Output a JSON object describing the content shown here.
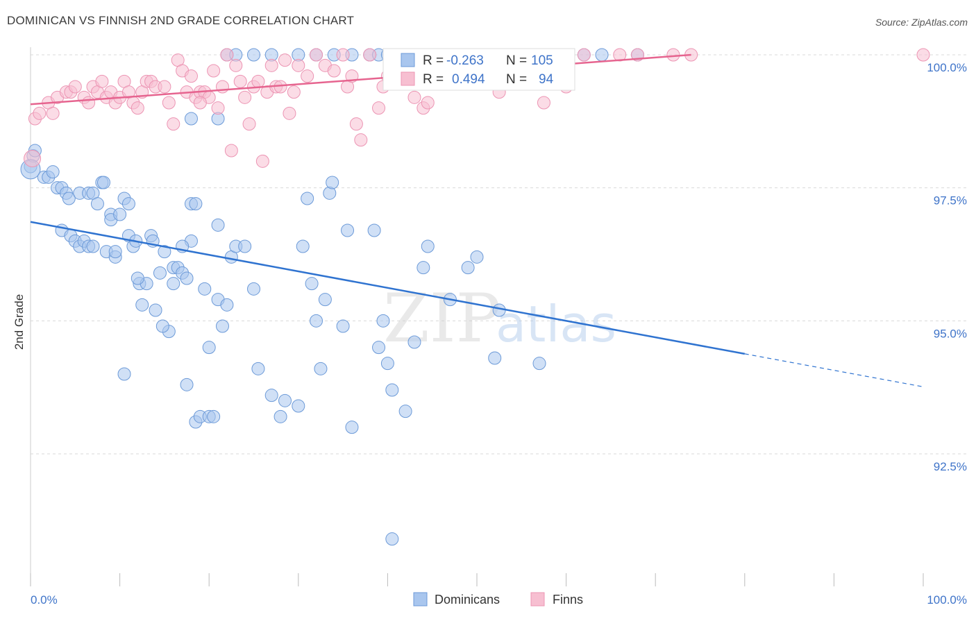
{
  "title": "DOMINICAN VS FINNISH 2ND GRADE CORRELATION CHART",
  "source": "Source: ZipAtlas.com",
  "watermark": {
    "part1": "ZIP",
    "part2": "atlas"
  },
  "chart_data": {
    "type": "scatter",
    "xlabel": "",
    "ylabel": "2nd Grade",
    "xlim": [
      0,
      100
    ],
    "ylim": [
      90.8,
      100.4
    ],
    "x_tick_labels": [
      "0.0%",
      "100.0%"
    ],
    "y_ticks": [
      {
        "value": 100.0,
        "label": "100.0%"
      },
      {
        "value": 97.5,
        "label": "97.5%"
      },
      {
        "value": 95.0,
        "label": "95.0%"
      },
      {
        "value": 92.5,
        "label": "92.5%"
      }
    ],
    "grid": true,
    "legend_position": "bottom",
    "stats_box": [
      {
        "series": "Dominicans",
        "r_label": "R =",
        "r": "-0.263",
        "n_label": "N =",
        "n": "105"
      },
      {
        "series": "Finns",
        "r_label": "R =",
        "r": "0.494",
        "n_label": "N =",
        "n": "94"
      }
    ],
    "colors": {
      "Dominicans": {
        "fill": "#a9c6ee",
        "stroke": "#6c9ad8",
        "line": "#2f73d0"
      },
      "Finns": {
        "fill": "#f7bfd1",
        "stroke": "#ec94b3",
        "line": "#e6648f"
      }
    },
    "series": [
      {
        "name": "Dominicans",
        "trendline": {
          "x": [
            0,
            80
          ],
          "y": [
            96.86,
            94.38
          ],
          "dashed_to": [
            100,
            93.76
          ]
        },
        "points": [
          [
            0,
            97.9
          ],
          [
            0.3,
            98.1
          ],
          [
            0.5,
            98.2
          ],
          [
            1.5,
            97.7
          ],
          [
            2,
            97.7
          ],
          [
            2.5,
            97.8
          ],
          [
            3,
            97.5
          ],
          [
            3.5,
            97.5
          ],
          [
            4,
            97.4
          ],
          [
            4.3,
            97.3
          ],
          [
            5.5,
            97.4
          ],
          [
            6.5,
            97.4
          ],
          [
            7,
            97.4
          ],
          [
            8,
            97.6
          ],
          [
            8.2,
            97.6
          ],
          [
            7.5,
            97.2
          ],
          [
            9,
            97.0
          ],
          [
            9,
            96.9
          ],
          [
            10,
            97.0
          ],
          [
            10.5,
            97.3
          ],
          [
            3.5,
            96.7
          ],
          [
            4.5,
            96.6
          ],
          [
            5,
            96.5
          ],
          [
            5.5,
            96.4
          ],
          [
            6,
            96.5
          ],
          [
            6.5,
            96.4
          ],
          [
            7,
            96.4
          ],
          [
            8.5,
            96.3
          ],
          [
            9.5,
            96.2
          ],
          [
            11,
            96.6
          ],
          [
            11.5,
            96.4
          ],
          [
            11.8,
            96.5
          ],
          [
            13.5,
            96.6
          ],
          [
            13.7,
            96.5
          ],
          [
            15,
            96.3
          ],
          [
            16,
            96.0
          ],
          [
            16.5,
            96.0
          ],
          [
            17,
            95.9
          ],
          [
            17.5,
            95.8
          ],
          [
            18,
            97.2
          ],
          [
            18.5,
            97.2
          ],
          [
            18,
            96.5
          ],
          [
            19.5,
            95.6
          ],
          [
            20,
            94.5
          ],
          [
            21,
            96.8
          ],
          [
            21,
            95.4
          ],
          [
            21.5,
            94.9
          ],
          [
            22,
            95.3
          ],
          [
            22.5,
            96.2
          ],
          [
            23,
            96.4
          ],
          [
            24,
            96.4
          ],
          [
            25,
            95.6
          ],
          [
            25.5,
            94.1
          ],
          [
            27,
            93.6
          ],
          [
            28,
            93.2
          ],
          [
            28.5,
            93.5
          ],
          [
            30,
            93.4
          ],
          [
            30.5,
            96.4
          ],
          [
            31,
            97.3
          ],
          [
            31.5,
            95.7
          ],
          [
            32,
            95.0
          ],
          [
            32.5,
            94.1
          ],
          [
            33,
            95.4
          ],
          [
            33.5,
            97.4
          ],
          [
            33.8,
            97.6
          ],
          [
            35,
            94.9
          ],
          [
            35.5,
            96.7
          ],
          [
            36,
            93.0
          ],
          [
            38.5,
            96.7
          ],
          [
            39,
            94.5
          ],
          [
            39.5,
            95.0
          ],
          [
            40,
            94.2
          ],
          [
            40.5,
            93.7
          ],
          [
            40.5,
            90.9
          ],
          [
            42,
            93.3
          ],
          [
            43,
            94.6
          ],
          [
            44,
            96.0
          ],
          [
            44.5,
            96.4
          ],
          [
            47,
            95.4
          ],
          [
            49,
            96.0
          ],
          [
            50,
            96.2
          ],
          [
            52,
            94.3
          ],
          [
            52.5,
            95.2
          ],
          [
            57,
            94.2
          ],
          [
            10.5,
            94.0
          ],
          [
            15.5,
            94.8
          ],
          [
            14.8,
            94.9
          ],
          [
            14,
            95.2
          ],
          [
            12.5,
            95.3
          ],
          [
            12.2,
            95.7
          ],
          [
            13,
            95.7
          ],
          [
            14.5,
            95.9
          ],
          [
            9.5,
            96.3
          ],
          [
            11,
            97.2
          ],
          [
            12,
            95.8
          ],
          [
            17,
            96.4
          ],
          [
            16,
            95.7
          ],
          [
            17.5,
            93.8
          ],
          [
            18.5,
            93.1
          ],
          [
            19,
            93.2
          ],
          [
            20,
            93.2
          ],
          [
            20.5,
            93.2
          ],
          [
            22,
            100.0
          ],
          [
            23,
            100.0
          ],
          [
            25,
            100.0
          ],
          [
            27,
            100.0
          ],
          [
            30,
            100.0
          ],
          [
            32,
            100.0
          ],
          [
            34,
            100.0
          ],
          [
            36,
            100.0
          ],
          [
            38,
            100.0
          ],
          [
            39,
            100.0
          ],
          [
            40,
            100.0
          ],
          [
            41,
            100.0
          ],
          [
            42,
            100.0
          ],
          [
            43,
            100.0
          ],
          [
            45,
            100.0
          ],
          [
            47,
            100.0
          ],
          [
            49,
            100.0
          ],
          [
            51,
            100.0
          ],
          [
            53,
            100.0
          ],
          [
            54,
            100.0
          ],
          [
            55,
            100.0
          ],
          [
            56,
            100.0
          ],
          [
            60,
            100.0
          ],
          [
            62,
            100.0
          ],
          [
            64,
            100.0
          ],
          [
            68,
            100.0
          ],
          [
            18,
            98.8
          ],
          [
            21,
            98.8
          ]
        ]
      },
      {
        "name": "Finns",
        "trendline": {
          "x": [
            0,
            74
          ],
          "y": [
            99.07,
            100.0
          ]
        },
        "points": [
          [
            0.5,
            98.8
          ],
          [
            1,
            98.9
          ],
          [
            2,
            99.1
          ],
          [
            2.5,
            98.9
          ],
          [
            3,
            99.2
          ],
          [
            4,
            99.3
          ],
          [
            4.5,
            99.3
          ],
          [
            5,
            99.4
          ],
          [
            6,
            99.2
          ],
          [
            6.5,
            99.1
          ],
          [
            7,
            99.4
          ],
          [
            7.5,
            99.3
          ],
          [
            8,
            99.5
          ],
          [
            8.5,
            99.2
          ],
          [
            9,
            99.3
          ],
          [
            9.5,
            99.1
          ],
          [
            10,
            99.2
          ],
          [
            10.5,
            99.5
          ],
          [
            11,
            99.3
          ],
          [
            11.5,
            99.1
          ],
          [
            12,
            99.0
          ],
          [
            12.5,
            99.3
          ],
          [
            13,
            99.5
          ],
          [
            13.5,
            99.5
          ],
          [
            14,
            99.4
          ],
          [
            15,
            99.4
          ],
          [
            15.5,
            99.1
          ],
          [
            16,
            98.7
          ],
          [
            16.5,
            99.9
          ],
          [
            17,
            99.7
          ],
          [
            17.5,
            99.3
          ],
          [
            18,
            99.6
          ],
          [
            18.5,
            99.2
          ],
          [
            19,
            99.3
          ],
          [
            19.5,
            99.3
          ],
          [
            20,
            99.2
          ],
          [
            20.5,
            99.7
          ],
          [
            21,
            99.0
          ],
          [
            21.5,
            99.4
          ],
          [
            22,
            100.0
          ],
          [
            22.5,
            98.2
          ],
          [
            23,
            99.8
          ],
          [
            23.5,
            99.5
          ],
          [
            24,
            99.2
          ],
          [
            24.5,
            98.7
          ],
          [
            25,
            99.4
          ],
          [
            25.5,
            99.5
          ],
          [
            26,
            98.0
          ],
          [
            26.5,
            99.3
          ],
          [
            27,
            99.8
          ],
          [
            27.5,
            99.4
          ],
          [
            28,
            99.4
          ],
          [
            28.5,
            99.9
          ],
          [
            29,
            98.9
          ],
          [
            29.5,
            99.3
          ],
          [
            30,
            99.8
          ],
          [
            31,
            99.6
          ],
          [
            32,
            100.0
          ],
          [
            33,
            99.8
          ],
          [
            34,
            99.7
          ],
          [
            35,
            100.0
          ],
          [
            35.5,
            99.4
          ],
          [
            36,
            99.6
          ],
          [
            36.5,
            98.7
          ],
          [
            37,
            98.4
          ],
          [
            38,
            100.0
          ],
          [
            39,
            99.0
          ],
          [
            39.5,
            99.4
          ],
          [
            40,
            99.6
          ],
          [
            41,
            100.0
          ],
          [
            42,
            100.0
          ],
          [
            43,
            99.2
          ],
          [
            44,
            99.0
          ],
          [
            44.5,
            99.1
          ],
          [
            45,
            100.0
          ],
          [
            46,
            100.0
          ],
          [
            47,
            100.0
          ],
          [
            48,
            100.0
          ],
          [
            50,
            99.5
          ],
          [
            52,
            100.0
          ],
          [
            53,
            100.0
          ],
          [
            54,
            99.5
          ],
          [
            56,
            100.0
          ],
          [
            58,
            100.0
          ],
          [
            62,
            100.0
          ],
          [
            66,
            100.0
          ],
          [
            68,
            100.0
          ],
          [
            72,
            100.0
          ],
          [
            74,
            100.0
          ],
          [
            100,
            100.0
          ],
          [
            52.5,
            99.3
          ],
          [
            57.5,
            99.1
          ],
          [
            60,
            99.4
          ],
          [
            19,
            99.1
          ]
        ]
      }
    ]
  }
}
